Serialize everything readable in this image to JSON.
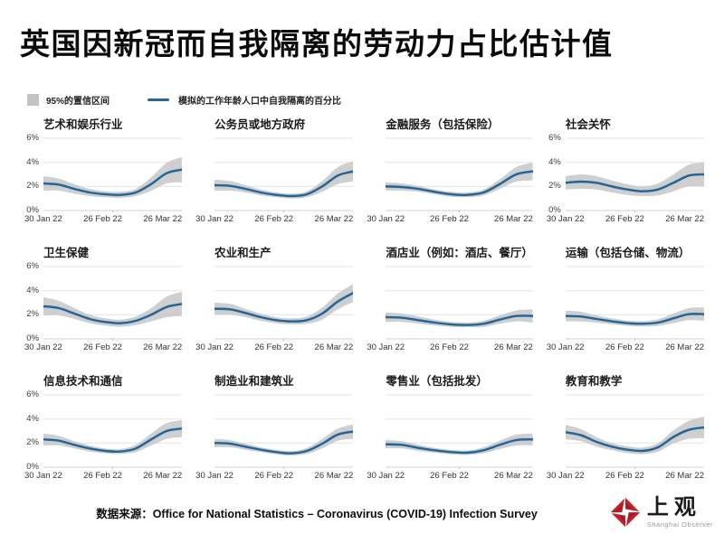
{
  "title": "英国因新冠而自我隔离的劳动力占比估计值",
  "legend": {
    "band_label": "95%的置信区间",
    "line_label": "模拟的工作年龄人口中自我隔离的百分比"
  },
  "source": {
    "prefix": "数据来源：",
    "text": "Office for National Statistics – Coronavirus (COVID-19) Infection Survey"
  },
  "logo": {
    "icon": "shanghai-observer-aperture-icon",
    "name": "上观",
    "subtitle": "Shanghai Observer"
  },
  "colors": {
    "line": "#2e6189",
    "line_casing": "#b8cfdf",
    "band": "#c8c8c8",
    "grid": "#e3e3e3",
    "logo_red": "#c5202c"
  },
  "chart_data": {
    "type": "line",
    "layout": "small-multiples 4x3",
    "x_ticks": [
      "30 Jan 22",
      "26 Feb 22",
      "26 Mar 22"
    ],
    "y_ticks": [
      "6%",
      "4%",
      "2%",
      "0%"
    ],
    "ylim": [
      0,
      6
    ],
    "unit": "%",
    "grid": true,
    "charts": [
      {
        "title": "艺术和娱乐行业",
        "show_y_axis": true,
        "values": [
          2.25,
          2.15,
          1.8,
          1.5,
          1.35,
          1.3,
          1.5,
          2.2,
          3.1,
          3.4
        ],
        "band": [
          0.6,
          0.5,
          0.4,
          0.3,
          0.25,
          0.25,
          0.3,
          0.55,
          0.85,
          1.05
        ]
      },
      {
        "title": "公务员或地方政府",
        "show_y_axis": false,
        "values": [
          2.1,
          2.05,
          1.8,
          1.5,
          1.3,
          1.2,
          1.35,
          2.0,
          2.9,
          3.25
        ],
        "band": [
          0.45,
          0.4,
          0.3,
          0.25,
          0.2,
          0.2,
          0.25,
          0.45,
          0.7,
          0.85
        ]
      },
      {
        "title": "金融服务（包括保险）",
        "show_y_axis": false,
        "values": [
          2.0,
          1.95,
          1.8,
          1.55,
          1.35,
          1.3,
          1.5,
          2.2,
          3.0,
          3.25
        ],
        "band": [
          0.35,
          0.3,
          0.25,
          0.2,
          0.2,
          0.2,
          0.25,
          0.4,
          0.6,
          0.75
        ]
      },
      {
        "title": "社会关怀",
        "show_y_axis": true,
        "values": [
          2.3,
          2.4,
          2.3,
          2.0,
          1.75,
          1.6,
          1.75,
          2.3,
          2.9,
          3.0
        ],
        "band": [
          0.55,
          0.6,
          0.55,
          0.5,
          0.45,
          0.4,
          0.5,
          0.7,
          0.9,
          1.0
        ]
      },
      {
        "title": "卫生保健",
        "show_y_axis": true,
        "values": [
          2.7,
          2.55,
          2.1,
          1.65,
          1.4,
          1.3,
          1.5,
          2.0,
          2.65,
          2.9
        ],
        "band": [
          0.75,
          0.6,
          0.45,
          0.35,
          0.3,
          0.3,
          0.35,
          0.55,
          0.85,
          1.0
        ]
      },
      {
        "title": "农业和生产",
        "show_y_axis": false,
        "values": [
          2.5,
          2.45,
          2.15,
          1.8,
          1.55,
          1.45,
          1.55,
          2.1,
          3.1,
          3.8
        ],
        "band": [
          0.5,
          0.45,
          0.35,
          0.3,
          0.25,
          0.25,
          0.3,
          0.5,
          0.65,
          0.75
        ]
      },
      {
        "title": "酒店业（例如：酒店、餐厅）",
        "show_y_axis": false,
        "values": [
          1.8,
          1.75,
          1.55,
          1.35,
          1.2,
          1.15,
          1.25,
          1.6,
          1.9,
          1.9
        ],
        "band": [
          0.4,
          0.35,
          0.3,
          0.25,
          0.2,
          0.2,
          0.25,
          0.35,
          0.45,
          0.55
        ]
      },
      {
        "title": "运输（包括仓储、物流）",
        "show_y_axis": false,
        "values": [
          1.9,
          1.85,
          1.65,
          1.45,
          1.3,
          1.25,
          1.35,
          1.7,
          2.05,
          2.05
        ],
        "band": [
          0.45,
          0.4,
          0.3,
          0.25,
          0.22,
          0.22,
          0.28,
          0.4,
          0.5,
          0.55
        ]
      },
      {
        "title": "信息技术和通信",
        "show_y_axis": true,
        "values": [
          2.3,
          2.2,
          1.85,
          1.55,
          1.35,
          1.3,
          1.55,
          2.3,
          3.0,
          3.2
        ],
        "band": [
          0.5,
          0.4,
          0.3,
          0.25,
          0.2,
          0.2,
          0.3,
          0.5,
          0.65,
          0.7
        ]
      },
      {
        "title": "制造业和建筑业",
        "show_y_axis": false,
        "values": [
          2.0,
          1.95,
          1.7,
          1.45,
          1.25,
          1.15,
          1.35,
          1.95,
          2.7,
          2.95
        ],
        "band": [
          0.35,
          0.3,
          0.25,
          0.2,
          0.18,
          0.18,
          0.25,
          0.4,
          0.5,
          0.6
        ]
      },
      {
        "title": "零售业（包括批发）",
        "show_y_axis": false,
        "values": [
          1.9,
          1.85,
          1.6,
          1.4,
          1.25,
          1.2,
          1.4,
          1.85,
          2.25,
          2.3
        ],
        "band": [
          0.35,
          0.3,
          0.25,
          0.2,
          0.18,
          0.18,
          0.25,
          0.35,
          0.45,
          0.5
        ]
      },
      {
        "title": "教育和教学",
        "show_y_axis": false,
        "values": [
          2.9,
          2.65,
          2.1,
          1.7,
          1.45,
          1.35,
          1.65,
          2.5,
          3.1,
          3.3
        ],
        "band": [
          0.6,
          0.5,
          0.4,
          0.3,
          0.28,
          0.28,
          0.35,
          0.55,
          0.75,
          0.9
        ]
      }
    ]
  }
}
